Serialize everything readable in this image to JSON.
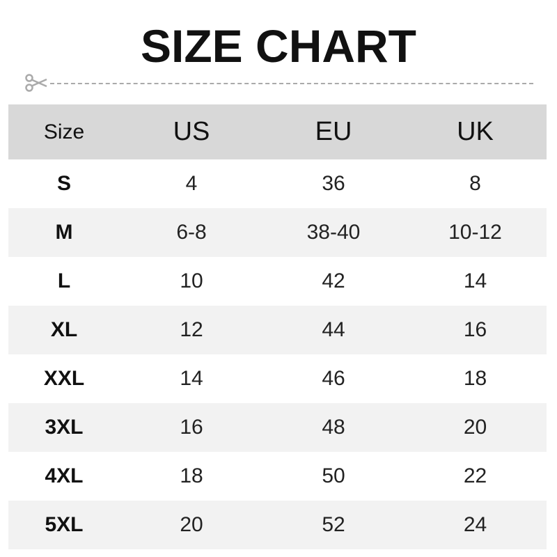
{
  "title": "SIZE CHART",
  "icons": {
    "cut": "scissors-icon"
  },
  "colors": {
    "header_bg": "#d8d8d8",
    "alt_row_bg": "#f2f2f2",
    "dash": "#aaaaaa"
  },
  "table": {
    "headers": [
      "Size",
      "US",
      "EU",
      "UK"
    ],
    "rows": [
      [
        "S",
        "4",
        "36",
        "8"
      ],
      [
        "M",
        "6-8",
        "38-40",
        "10-12"
      ],
      [
        "L",
        "10",
        "42",
        "14"
      ],
      [
        "XL",
        "12",
        "44",
        "16"
      ],
      [
        "XXL",
        "14",
        "46",
        "18"
      ],
      [
        "3XL",
        "16",
        "48",
        "20"
      ],
      [
        "4XL",
        "18",
        "50",
        "22"
      ],
      [
        "5XL",
        "20",
        "52",
        "24"
      ]
    ]
  }
}
